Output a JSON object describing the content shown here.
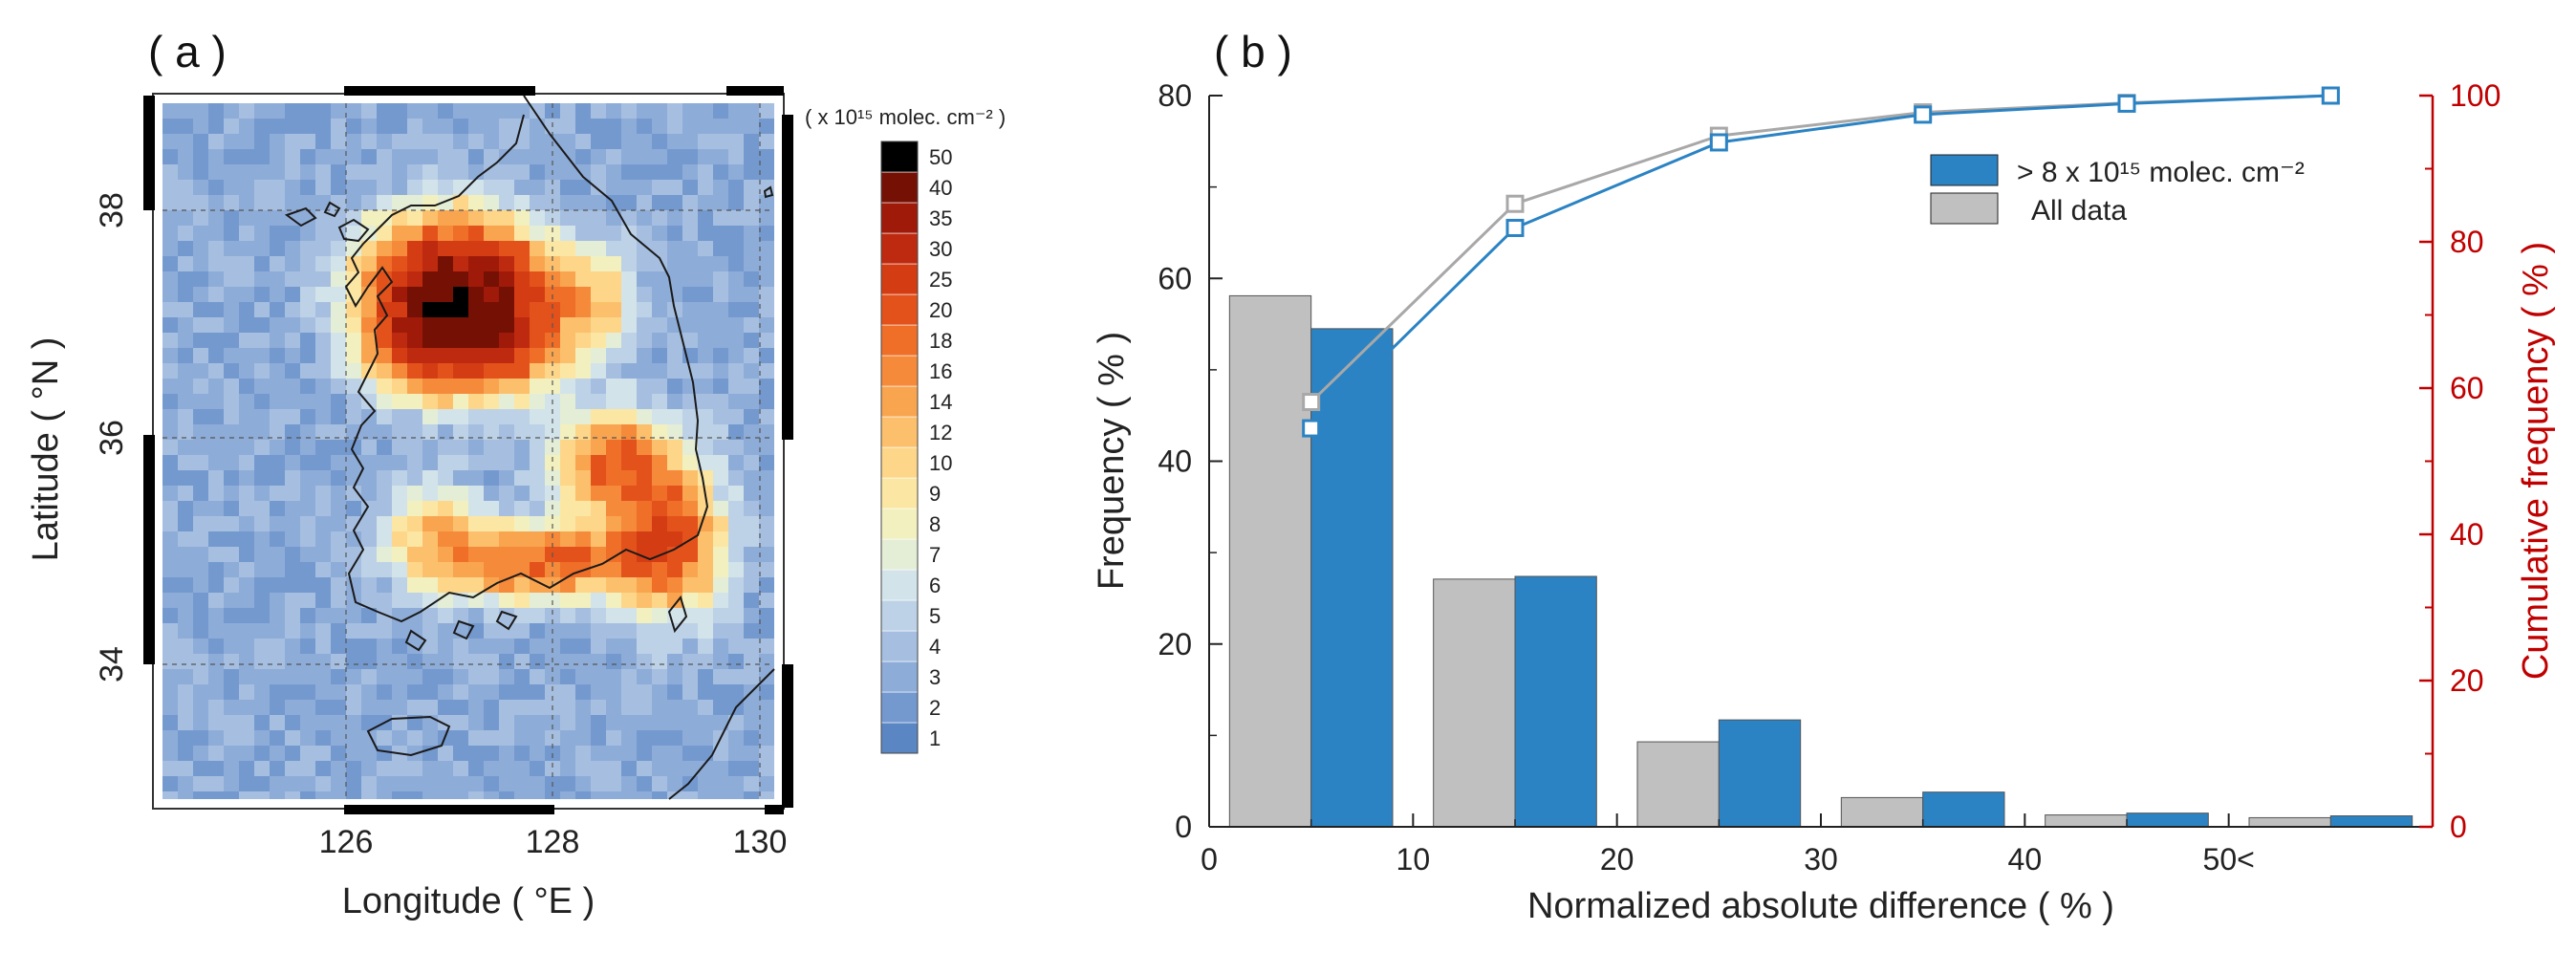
{
  "chart_data": [
    {
      "type": "heatmap",
      "panel_label": "( a )",
      "title": "",
      "xlabel": "Longitude ( °E )",
      "ylabel": "Latitude ( °N )",
      "xlim": [
        124,
        130.3
      ],
      "ylim": [
        32.8,
        39.1
      ],
      "x_ticks": [
        "126",
        "128",
        "130"
      ],
      "y_ticks": [
        "34",
        "36",
        "38"
      ],
      "colorbar": {
        "title": "( x 10¹⁵ molec. cm⁻² )",
        "levels": [
          "1",
          "2",
          "3",
          "4",
          "5",
          "6",
          "7",
          "8",
          "9",
          "10",
          "12",
          "14",
          "16",
          "18",
          "20",
          "25",
          "30",
          "35",
          "40",
          "50"
        ],
        "colors": [
          "#5b86c4",
          "#7499cf",
          "#8eacd8",
          "#a6bfe0",
          "#bdd2e6",
          "#d3e3ea",
          "#e4eed6",
          "#f2f0bf",
          "#fbe7a3",
          "#fdd68a",
          "#fcc06c",
          "#f9a550",
          "#f58a3a",
          "#ef6e28",
          "#e4521c",
          "#d43d14",
          "#be2a0f",
          "#9f1a09",
          "#751005",
          "#000000"
        ]
      },
      "field": {
        "background_value": 3.5,
        "hotspots": [
          {
            "lon": 127.0,
            "lat": 37.45,
            "peak": 38,
            "sx": 0.55,
            "sy": 0.38
          },
          {
            "lon": 127.4,
            "lat": 37.0,
            "peak": 22,
            "sx": 0.5,
            "sy": 0.35
          },
          {
            "lon": 126.6,
            "lat": 36.9,
            "peak": 16,
            "sx": 0.35,
            "sy": 0.3
          },
          {
            "lon": 128.6,
            "lat": 35.85,
            "peak": 16,
            "sx": 0.35,
            "sy": 0.3
          },
          {
            "lon": 129.2,
            "lat": 35.2,
            "peak": 20,
            "sx": 0.35,
            "sy": 0.45
          },
          {
            "lon": 127.9,
            "lat": 34.95,
            "peak": 18,
            "sx": 0.7,
            "sy": 0.22
          },
          {
            "lon": 126.8,
            "lat": 35.2,
            "peak": 9,
            "sx": 0.3,
            "sy": 0.3
          },
          {
            "lon": 128.4,
            "lat": 37.3,
            "peak": 8,
            "sx": 0.3,
            "sy": 0.3
          }
        ]
      }
    },
    {
      "type": "bar",
      "panel_label": "( b )",
      "title": "",
      "xlabel": "Normalized absolute difference ( % )",
      "ylabel": "Frequency ( % )",
      "y2label": "Cumulative frequency ( % )",
      "xlim": [
        0,
        60
      ],
      "ylim": [
        0,
        80
      ],
      "y2lim": [
        0,
        100
      ],
      "x_ticks": [
        "0",
        "10",
        "20",
        "30",
        "40",
        "50<"
      ],
      "y_ticks": [
        "0",
        "20",
        "40",
        "60",
        "80"
      ],
      "y2_ticks": [
        "0",
        "20",
        "40",
        "60",
        "80",
        "100"
      ],
      "categories": [
        "0-10",
        "10-20",
        "20-30",
        "30-40",
        "40-50",
        "50<"
      ],
      "bin_centers": [
        5,
        15,
        25,
        35,
        45,
        55
      ],
      "series": [
        {
          "name": "All data",
          "color": "#c0c0c0",
          "values": [
            58.1,
            27.1,
            9.3,
            3.2,
            1.3,
            1.0
          ]
        },
        {
          "name": "> 8 x 10¹⁵ molec. cm⁻²",
          "color": "#2b83c3",
          "values": [
            54.5,
            27.4,
            11.7,
            3.8,
            1.5,
            1.2
          ]
        }
      ],
      "cumulative_series": [
        {
          "name": "All data",
          "color": "#a8a8a8",
          "x": [
            5,
            15,
            25,
            35,
            45,
            55
          ],
          "values": [
            58.1,
            85.2,
            94.5,
            97.7,
            99.0,
            100.0
          ]
        },
        {
          "name": "> 8 x 10¹⁵ molec. cm⁻²",
          "color": "#2b83c3",
          "x": [
            5,
            15,
            25,
            35,
            45,
            55
          ],
          "values": [
            54.5,
            81.9,
            93.6,
            97.4,
            98.9,
            100.0
          ]
        }
      ],
      "legend": {
        "placement": "top-right",
        "entries": [
          "> 8 x 10¹⁵ molec. cm⁻²",
          "All data"
        ]
      },
      "secondary_axis_color": "#c00000"
    }
  ]
}
